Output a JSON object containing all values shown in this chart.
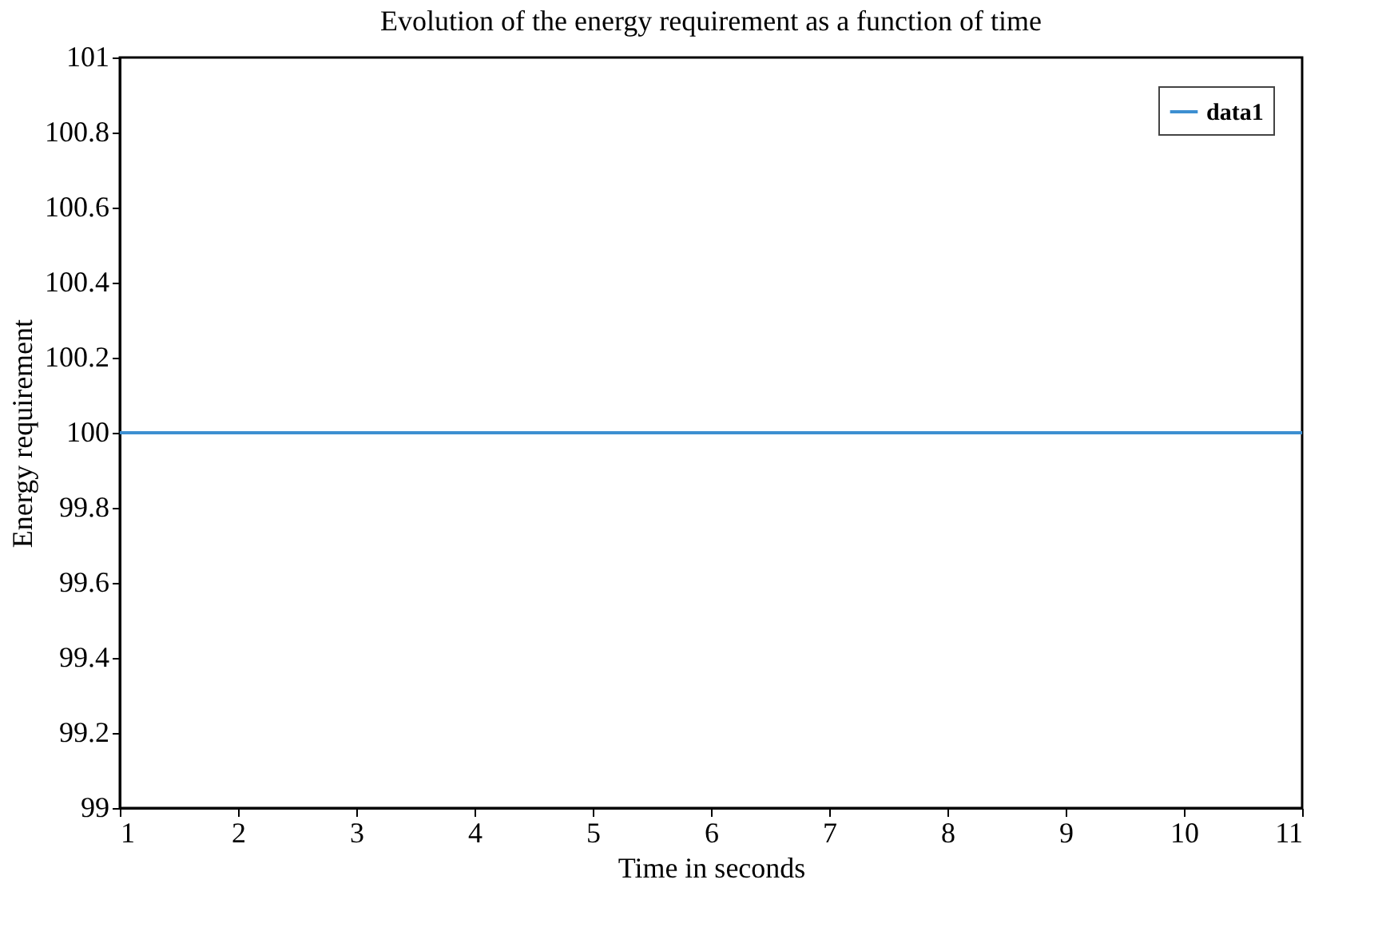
{
  "chart_data": {
    "type": "line",
    "title": "Evolution of the energy requirement as a function of time",
    "xlabel": "Time in seconds",
    "ylabel": "Energy requirement",
    "x": [
      1,
      11
    ],
    "series": [
      {
        "name": "data1",
        "color": "#3d8fd1",
        "values": [
          100,
          100
        ]
      }
    ],
    "xlim": [
      1,
      11
    ],
    "xticks": [
      1,
      2,
      3,
      4,
      5,
      6,
      7,
      8,
      9,
      10,
      11
    ],
    "ylim": [
      99,
      101
    ],
    "yticks": [
      99,
      99.2,
      99.4,
      99.6,
      99.8,
      100,
      100.2,
      100.4,
      100.6,
      100.8,
      101
    ],
    "grid": false,
    "legend": "top right",
    "marker": "none",
    "line_style": "solid"
  }
}
